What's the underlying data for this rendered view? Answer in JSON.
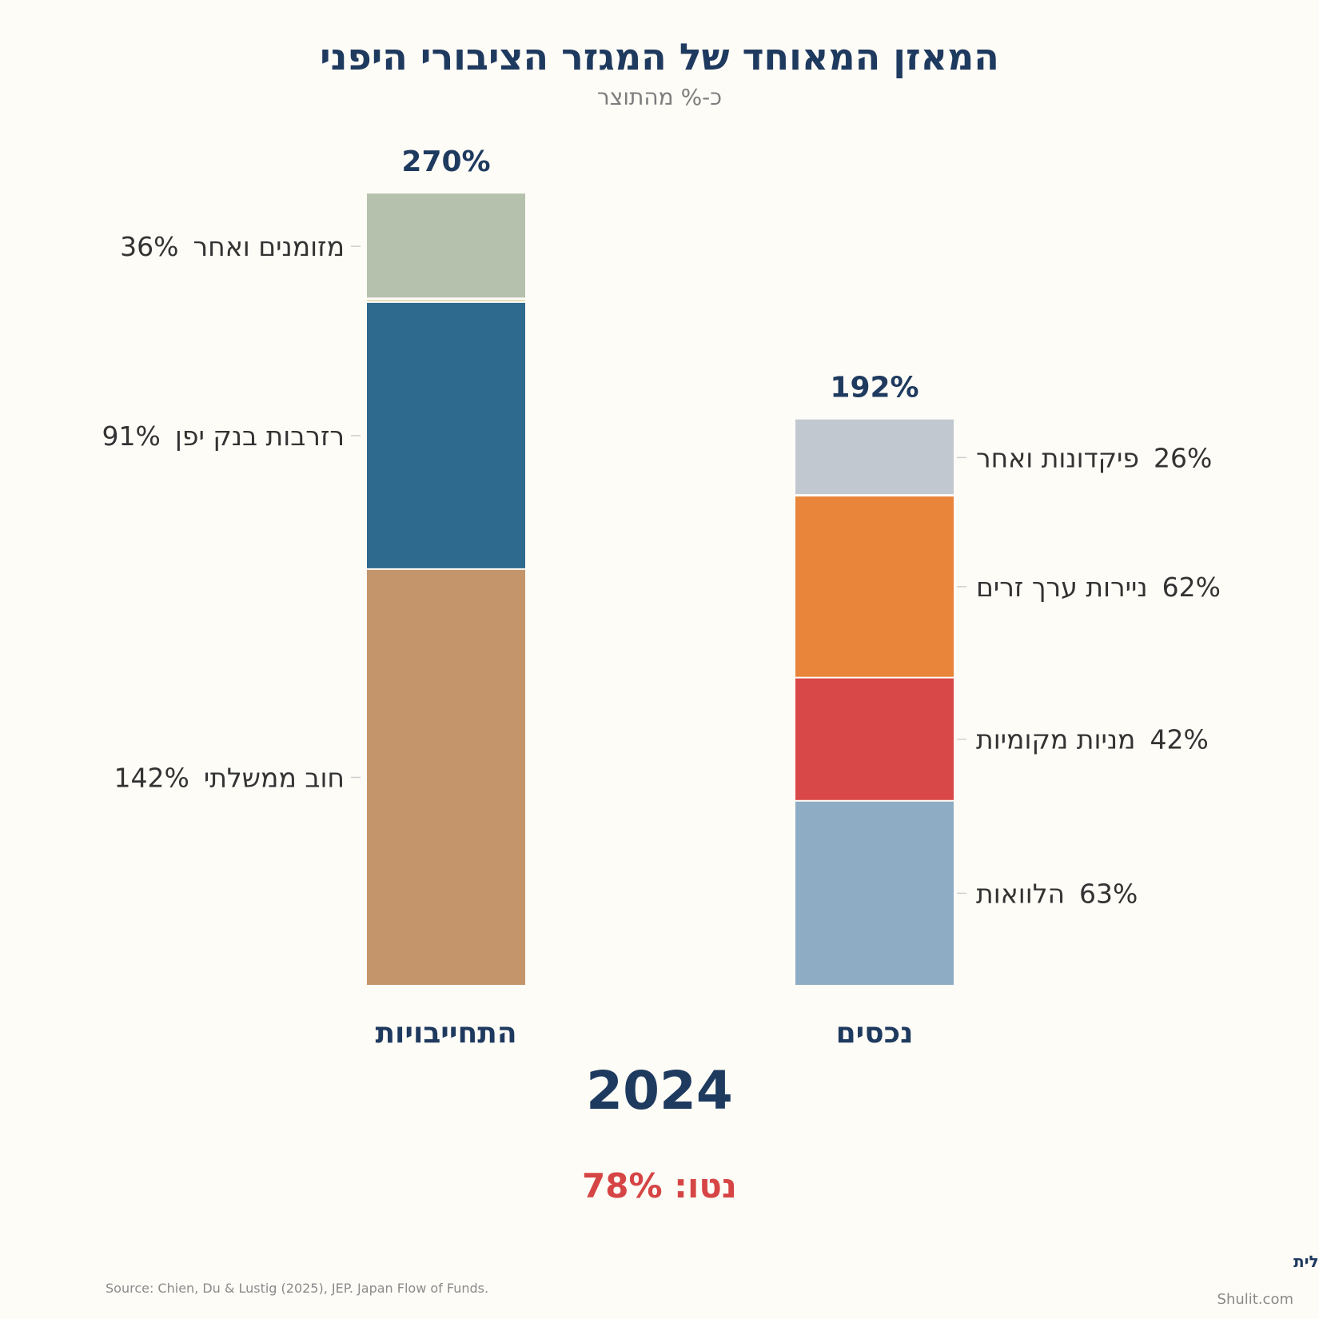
{
  "chart_data": {
    "type": "bar",
    "stacked": true,
    "title": "המאזן המאוחד של המגזר הציבורי היפני",
    "subtitle": "כ-% מהתוצר",
    "year": "2024",
    "net_label": "נטו: 78%",
    "colors": {
      "title": "#1f3a5f",
      "net": "#d64545"
    },
    "columns": [
      {
        "label": "התחייבויות",
        "total_label": "270%",
        "label_side": "left",
        "segments": [
          {
            "name": "חוב ממשלתי",
            "value": 142,
            "value_label": "142%",
            "color": "#c4956a"
          },
          {
            "name": "רזרבות בנק יפן",
            "value": 91,
            "value_label": "91%",
            "color": "#2e6a8e"
          },
          {
            "name": "",
            "value": 1,
            "value_label": "",
            "color": "#e6d6b2"
          },
          {
            "name": "מזומנים ואחר",
            "value": 36,
            "value_label": "36%",
            "color": "#b6c1ad"
          }
        ]
      },
      {
        "label": "נכסים",
        "total_label": "192%",
        "label_side": "right",
        "segments": [
          {
            "name": "הלוואות",
            "value": 63,
            "value_label": "63%",
            "color": "#8eacc4"
          },
          {
            "name": "מניות מקומיות",
            "value": 42,
            "value_label": "42%",
            "color": "#d94848"
          },
          {
            "name": "ניירות ערך זרים",
            "value": 62,
            "value_label": "62%",
            "color": "#e8853a"
          },
          {
            "name": "פיקדונות ואחר",
            "value": 26,
            "value_label": "26%",
            "color": "#c2c8d0"
          }
        ]
      }
    ]
  },
  "footer": {
    "source": "Source: Chien, Du & Lustig (2025), JEP. Japan Flow of Funds.",
    "brand": "תועלת שולית",
    "site": "Shulit.com"
  }
}
